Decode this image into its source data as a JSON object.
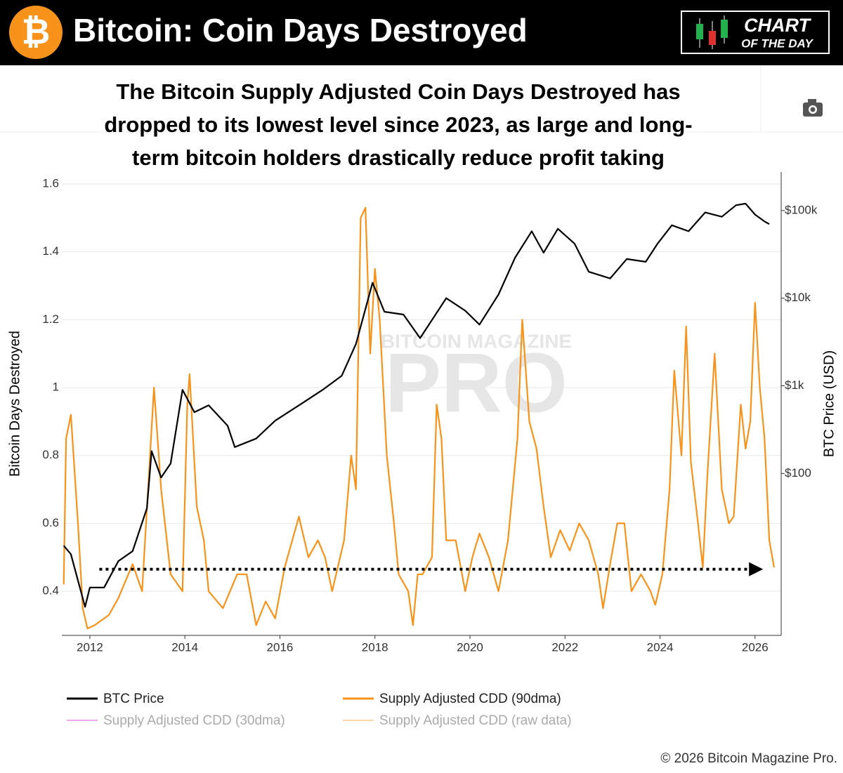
{
  "header": {
    "logo_symbol": "₿",
    "title": "Bitcoin: Coin Days Destroyed",
    "badge": [
      "CHART",
      "OF THE DAY"
    ]
  },
  "chart_data": {
    "type": "line",
    "subtitle_lines": [
      "The Bitcoin Supply Adjusted Coin Days Destroyed has",
      "dropped to its lowest level since 2023, as large and long-",
      "term bitcoin holders drastically reduce profit taking"
    ],
    "watermark": [
      "BITCOIN MAGAZINE",
      "PRO"
    ],
    "ylabel": "Bitcoin Days Destroyed",
    "y2label": "BTC Price (USD)",
    "xlim": [
      2011.41,
      2026.55
    ],
    "xticks": [
      2012,
      2014,
      2016,
      2018,
      2020,
      2022,
      2024,
      2026
    ],
    "ylim": [
      0.27,
      1.635
    ],
    "yticks": [
      0.4,
      0.6,
      0.8,
      1,
      1.2,
      1.4,
      1.6
    ],
    "y2scale": "log",
    "y2lim": [
      1.42,
      275000
    ],
    "y2ticks": [
      {
        "value": 100,
        "label": "$100"
      },
      {
        "value": 1000,
        "label": "$1k"
      },
      {
        "value": 10000,
        "label": "$10k"
      },
      {
        "value": 100000,
        "label": "$100k"
      }
    ],
    "grid": true,
    "series": [
      {
        "name": "BTC Price",
        "color": "#000000",
        "axis": "y2",
        "x": [
          2011.45,
          2011.6,
          2011.9,
          2012.0,
          2012.3,
          2012.6,
          2012.9,
          2013.2,
          2013.3,
          2013.5,
          2013.7,
          2013.95,
          2014.2,
          2014.5,
          2014.9,
          2015.05,
          2015.5,
          2015.9,
          2016.5,
          2016.9,
          2017.3,
          2017.6,
          2017.95,
          2018.2,
          2018.6,
          2018.95,
          2019.5,
          2019.9,
          2020.2,
          2020.6,
          2020.95,
          2021.3,
          2021.55,
          2021.85,
          2022.2,
          2022.5,
          2022.95,
          2023.3,
          2023.7,
          2023.95,
          2024.25,
          2024.6,
          2024.95,
          2025.3,
          2025.6,
          2025.8,
          2026.0,
          2026.2,
          2026.3
        ],
        "values": [
          15,
          12,
          3,
          5,
          5,
          10,
          13,
          40,
          180,
          90,
          130,
          900,
          500,
          600,
          350,
          200,
          250,
          400,
          650,
          900,
          1300,
          3000,
          15000,
          7000,
          6500,
          3500,
          10000,
          7200,
          5000,
          11000,
          29000,
          58000,
          33000,
          62000,
          42000,
          20000,
          16800,
          28000,
          26000,
          42000,
          68000,
          58000,
          95000,
          85000,
          115000,
          120000,
          90000,
          75000,
          70000
        ]
      },
      {
        "name": "Supply Adjusted CDD (90dma)",
        "color": "#f7931a",
        "x": [
          2011.45,
          2011.5,
          2011.6,
          2011.75,
          2011.85,
          2011.95,
          2012.1,
          2012.4,
          2012.6,
          2012.9,
          2013.1,
          2013.35,
          2013.5,
          2013.7,
          2013.95,
          2014.05,
          2014.1,
          2014.25,
          2014.4,
          2014.5,
          2014.8,
          2015.1,
          2015.3,
          2015.5,
          2015.7,
          2015.9,
          2016.1,
          2016.4,
          2016.6,
          2016.8,
          2016.95,
          2017.1,
          2017.35,
          2017.5,
          2017.6,
          2017.7,
          2017.8,
          2017.9,
          2018.0,
          2018.1,
          2018.25,
          2018.4,
          2018.5,
          2018.7,
          2018.8,
          2018.9,
          2019.0,
          2019.2,
          2019.3,
          2019.4,
          2019.5,
          2019.7,
          2019.9,
          2020.05,
          2020.2,
          2020.4,
          2020.6,
          2020.8,
          2021.0,
          2021.1,
          2021.25,
          2021.4,
          2021.55,
          2021.7,
          2021.9,
          2022.1,
          2022.3,
          2022.5,
          2022.7,
          2022.8,
          2022.95,
          2023.1,
          2023.25,
          2023.4,
          2023.6,
          2023.8,
          2023.9,
          2024.05,
          2024.2,
          2024.3,
          2024.45,
          2024.55,
          2024.65,
          2024.8,
          2024.9,
          2025.0,
          2025.15,
          2025.3,
          2025.45,
          2025.55,
          2025.7,
          2025.8,
          2025.9,
          2026.0,
          2026.1,
          2026.2,
          2026.3,
          2026.4
        ],
        "values": [
          0.42,
          0.85,
          0.92,
          0.6,
          0.35,
          0.29,
          0.3,
          0.33,
          0.38,
          0.48,
          0.4,
          1.0,
          0.7,
          0.45,
          0.4,
          0.95,
          1.04,
          0.65,
          0.55,
          0.4,
          0.35,
          0.45,
          0.45,
          0.3,
          0.37,
          0.32,
          0.47,
          0.62,
          0.5,
          0.55,
          0.5,
          0.4,
          0.55,
          0.8,
          0.7,
          1.5,
          1.53,
          1.1,
          1.35,
          1.2,
          0.8,
          0.6,
          0.45,
          0.4,
          0.3,
          0.45,
          0.45,
          0.5,
          0.95,
          0.85,
          0.55,
          0.55,
          0.4,
          0.5,
          0.57,
          0.5,
          0.4,
          0.55,
          0.85,
          1.2,
          0.9,
          0.82,
          0.65,
          0.5,
          0.58,
          0.52,
          0.6,
          0.55,
          0.45,
          0.35,
          0.48,
          0.6,
          0.6,
          0.4,
          0.45,
          0.4,
          0.36,
          0.45,
          0.7,
          1.05,
          0.8,
          1.18,
          0.78,
          0.6,
          0.47,
          0.75,
          1.1,
          0.7,
          0.6,
          0.62,
          0.95,
          0.82,
          0.9,
          1.25,
          1.0,
          0.85,
          0.55,
          0.47
        ]
      }
    ],
    "hidden_series": [
      {
        "name": "Supply Adjusted CDD (30dma)",
        "color": "#f0a8f0"
      },
      {
        "name": "Supply Adjusted CDD (raw data)",
        "color": "#f9d7a8"
      }
    ],
    "annotation_arrow": {
      "y": 0.465,
      "x": [
        2012.2,
        2026.05
      ]
    }
  },
  "footer": {
    "copyright": "© 2026 Bitcoin Magazine Pro."
  }
}
